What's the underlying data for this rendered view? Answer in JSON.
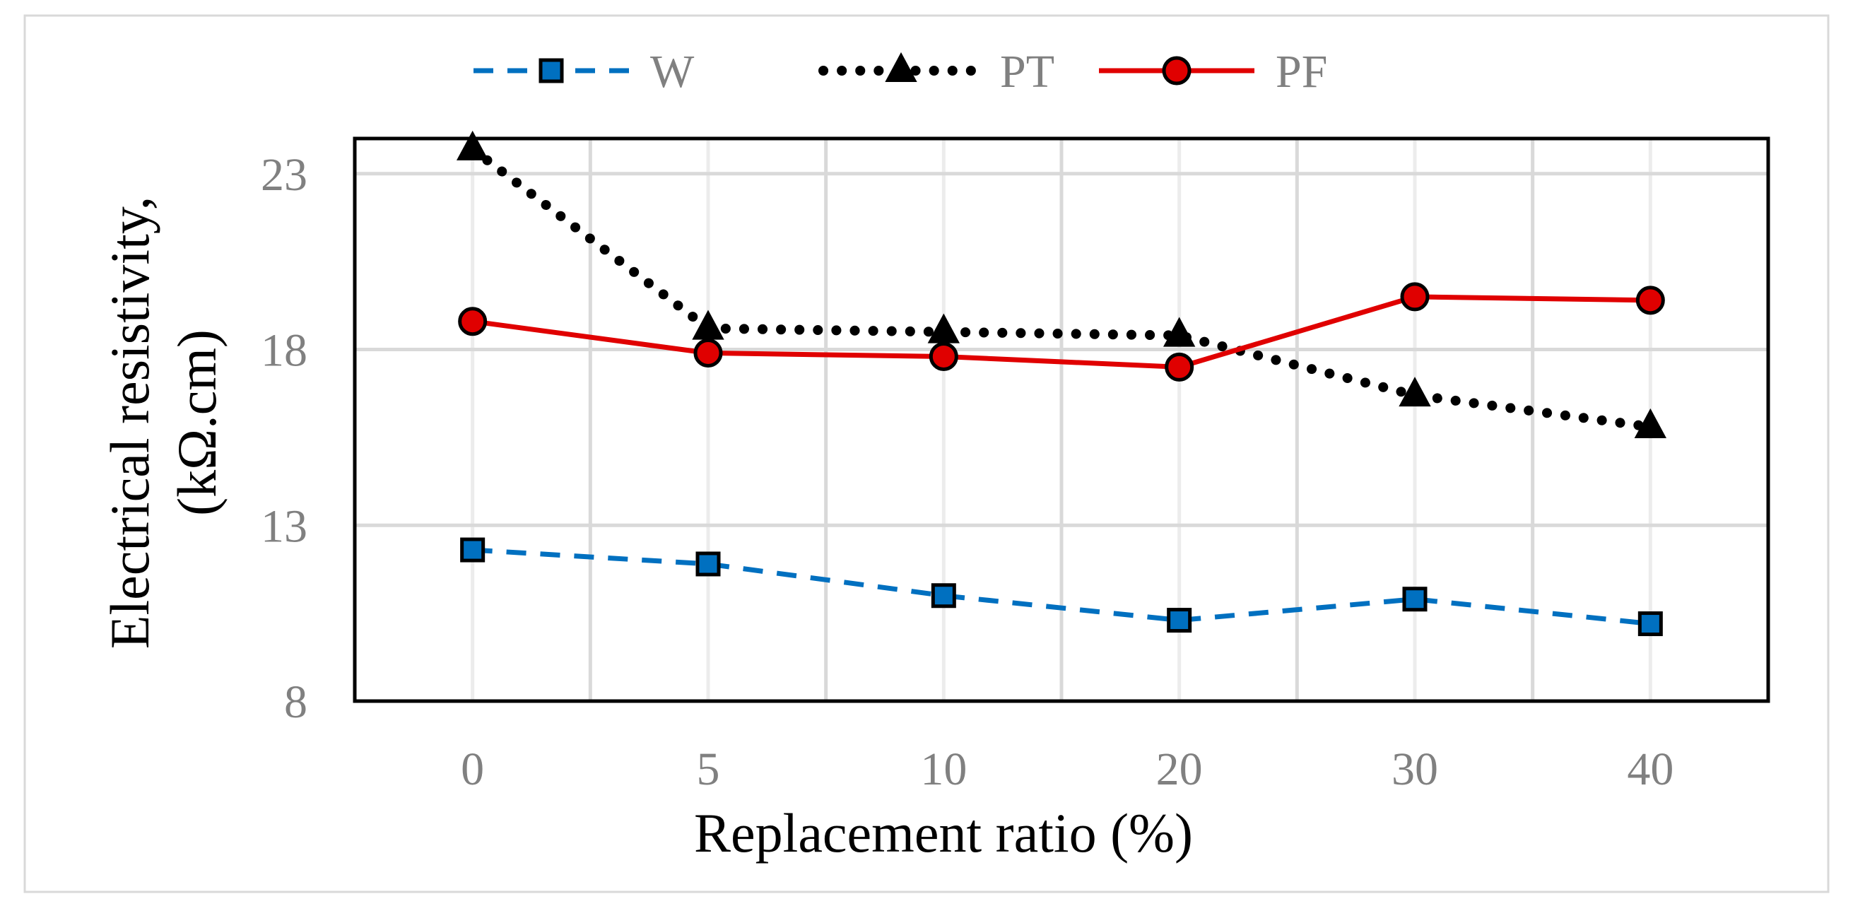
{
  "chart_data": {
    "type": "line",
    "title": "",
    "xlabel": "Replacement ratio (%)",
    "ylabel_lines": [
      "Electrical resistivity,",
      "(kΩ.cm)"
    ],
    "categories": [
      "0",
      "5",
      "10",
      "20",
      "30",
      "40"
    ],
    "ylim": [
      8,
      24
    ],
    "yticks": [
      "8",
      "13",
      "18",
      "23"
    ],
    "grid": true,
    "legend_position": "top-center",
    "series": [
      {
        "name": "W",
        "values": [
          12.3,
          11.9,
          11.0,
          10.3,
          10.9,
          10.2
        ],
        "color": "#0070C0",
        "line": "dashed",
        "marker": "square"
      },
      {
        "name": "PT",
        "values": [
          23.7,
          18.6,
          18.5,
          18.4,
          16.7,
          15.8
        ],
        "color": "#000000",
        "line": "dotted",
        "marker": "triangle"
      },
      {
        "name": "PF",
        "values": [
          18.8,
          17.9,
          17.8,
          17.5,
          19.5,
          19.4
        ],
        "color": "#E00000",
        "line": "solid",
        "marker": "circle"
      }
    ]
  }
}
